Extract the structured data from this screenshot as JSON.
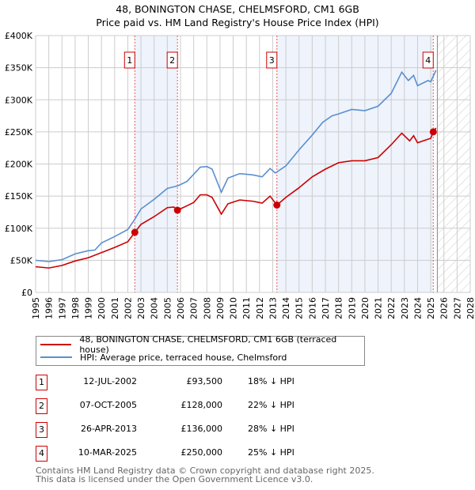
{
  "chart_data": {
    "type": "line",
    "title": "48, BONINGTON CHASE, CHELMSFORD, CM1 6GB",
    "subtitle": "Price paid vs. HM Land Registry's House Price Index (HPI)",
    "xlim": [
      1995,
      2028
    ],
    "ylim": [
      0,
      400000
    ],
    "x_ticks": [
      "1995",
      "1996",
      "1997",
      "1998",
      "1999",
      "2000",
      "2001",
      "2002",
      "2003",
      "2004",
      "2005",
      "2006",
      "2007",
      "2008",
      "2009",
      "2010",
      "2011",
      "2012",
      "2013",
      "2014",
      "2015",
      "2016",
      "2017",
      "2018",
      "2019",
      "2020",
      "2021",
      "2022",
      "2023",
      "2024",
      "2025",
      "2026",
      "2027",
      "2028"
    ],
    "y_ticks": [
      {
        "v": 0,
        "label": "£0"
      },
      {
        "v": 50000,
        "label": "£50K"
      },
      {
        "v": 100000,
        "label": "£100K"
      },
      {
        "v": 150000,
        "label": "£150K"
      },
      {
        "v": 200000,
        "label": "£200K"
      },
      {
        "v": 250000,
        "label": "£250K"
      },
      {
        "v": 300000,
        "label": "£300K"
      },
      {
        "v": 350000,
        "label": "£350K"
      },
      {
        "v": 400000,
        "label": "£400K"
      }
    ],
    "grid": true,
    "series": [
      {
        "name": "48, BONINGTON CHASE, CHELMSFORD, CM1 6GB (terraced house)",
        "color": "#cc0000",
        "points": [
          [
            1995,
            40000
          ],
          [
            1996,
            38000
          ],
          [
            1997,
            42000
          ],
          [
            1998,
            49000
          ],
          [
            1999,
            54000
          ],
          [
            2000,
            62000
          ],
          [
            2001,
            70000
          ],
          [
            2002,
            79000
          ],
          [
            2002.53,
            93500
          ],
          [
            2003,
            106000
          ],
          [
            2004,
            118000
          ],
          [
            2005,
            132000
          ],
          [
            2005.5,
            133000
          ],
          [
            2005.77,
            128000
          ],
          [
            2006.5,
            135000
          ],
          [
            2007,
            140000
          ],
          [
            2007.5,
            152000
          ],
          [
            2008,
            152000
          ],
          [
            2008.4,
            148000
          ],
          [
            2009.1,
            122000
          ],
          [
            2009.6,
            138000
          ],
          [
            2010.5,
            144000
          ],
          [
            2011.5,
            142000
          ],
          [
            2012.2,
            139000
          ],
          [
            2012.8,
            150000
          ],
          [
            2013.32,
            136000
          ],
          [
            2014,
            148000
          ],
          [
            2015,
            163000
          ],
          [
            2016,
            180000
          ],
          [
            2017,
            192000
          ],
          [
            2018,
            202000
          ],
          [
            2019,
            205000
          ],
          [
            2020,
            205000
          ],
          [
            2021,
            210000
          ],
          [
            2022,
            230000
          ],
          [
            2022.8,
            248000
          ],
          [
            2023.4,
            236000
          ],
          [
            2023.7,
            244000
          ],
          [
            2024,
            233000
          ],
          [
            2025,
            240000
          ],
          [
            2025.19,
            250000
          ],
          [
            2025.4,
            256000
          ]
        ]
      },
      {
        "name": "HPI: Average price, terraced house, Chelmsford",
        "color": "#5b8fd0",
        "points": [
          [
            1995,
            50000
          ],
          [
            1996,
            48000
          ],
          [
            1997,
            51000
          ],
          [
            1998,
            60000
          ],
          [
            1999,
            65000
          ],
          [
            1999.5,
            66000
          ],
          [
            2000,
            77000
          ],
          [
            2001,
            87000
          ],
          [
            2002,
            98000
          ],
          [
            2002.5,
            113000
          ],
          [
            2003,
            130000
          ],
          [
            2004,
            145000
          ],
          [
            2005,
            162000
          ],
          [
            2005.8,
            166000
          ],
          [
            2006.5,
            173000
          ],
          [
            2007.5,
            195000
          ],
          [
            2008,
            196000
          ],
          [
            2008.4,
            192000
          ],
          [
            2009.1,
            156000
          ],
          [
            2009.6,
            178000
          ],
          [
            2010.5,
            185000
          ],
          [
            2011.5,
            183000
          ],
          [
            2012.2,
            180000
          ],
          [
            2012.8,
            193000
          ],
          [
            2013.2,
            186000
          ],
          [
            2014,
            197000
          ],
          [
            2015,
            222000
          ],
          [
            2016,
            245000
          ],
          [
            2016.8,
            265000
          ],
          [
            2017.5,
            275000
          ],
          [
            2018,
            278000
          ],
          [
            2019,
            285000
          ],
          [
            2020,
            283000
          ],
          [
            2021,
            290000
          ],
          [
            2021.5,
            300000
          ],
          [
            2022,
            310000
          ],
          [
            2022.8,
            343000
          ],
          [
            2023.3,
            330000
          ],
          [
            2023.7,
            338000
          ],
          [
            2024,
            322000
          ],
          [
            2024.8,
            330000
          ],
          [
            2025,
            328000
          ],
          [
            2025.4,
            346000
          ]
        ]
      }
    ],
    "sales": [
      {
        "n": "1",
        "x": 2002.53,
        "y": 93500
      },
      {
        "n": "2",
        "x": 2005.77,
        "y": 128000
      },
      {
        "n": "3",
        "x": 2013.32,
        "y": 136000
      },
      {
        "n": "4",
        "x": 2025.19,
        "y": 250000
      }
    ],
    "shaded_ranges": [
      [
        2002.53,
        2005.77
      ],
      [
        2013.32,
        2025.19
      ]
    ],
    "forecast_hatch_from": 2025.5,
    "legend_placement": "below"
  },
  "table": [
    {
      "n": "1",
      "date": "12-JUL-2002",
      "price": "£93,500",
      "pct": "18% ↓ HPI"
    },
    {
      "n": "2",
      "date": "07-OCT-2005",
      "price": "£128,000",
      "pct": "22% ↓ HPI"
    },
    {
      "n": "3",
      "date": "26-APR-2013",
      "price": "£136,000",
      "pct": "28% ↓ HPI"
    },
    {
      "n": "4",
      "date": "10-MAR-2025",
      "price": "£250,000",
      "pct": "25% ↓ HPI"
    }
  ],
  "footer": [
    "Contains HM Land Registry data © Crown copyright and database right 2025.",
    "This data is licensed under the Open Government Licence v3.0."
  ]
}
